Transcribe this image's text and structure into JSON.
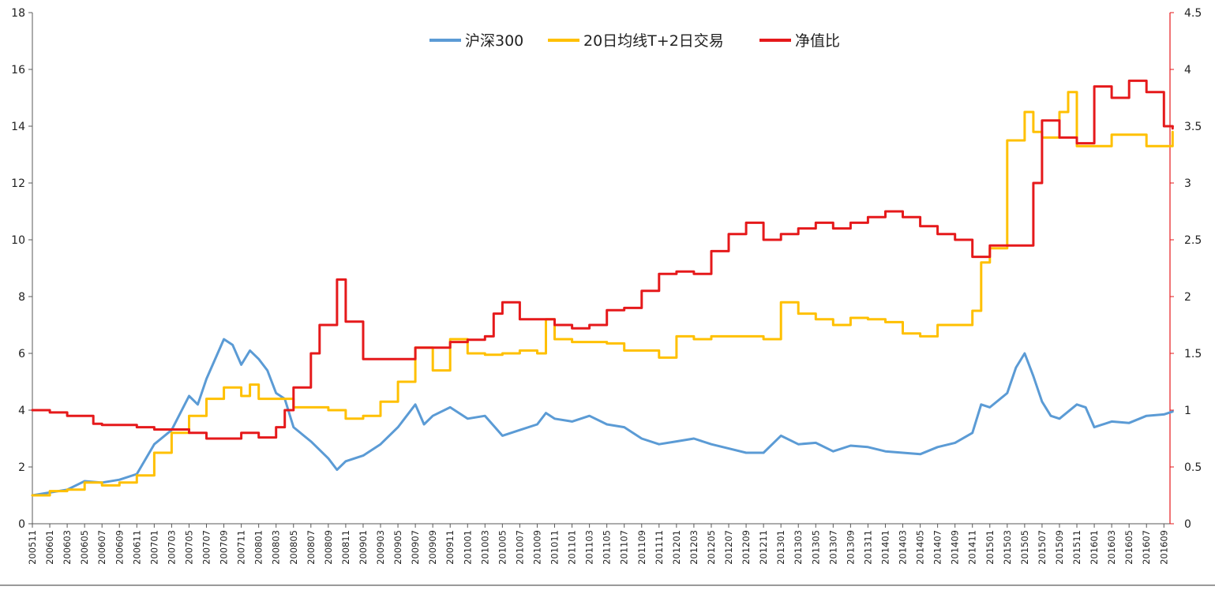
{
  "chart_data": {
    "type": "line",
    "legend_position": "top-center",
    "grid": false,
    "x_categories": [
      "200511",
      "200601",
      "200603",
      "200605",
      "200607",
      "200609",
      "200611",
      "200701",
      "200703",
      "200705",
      "200707",
      "200709",
      "200711",
      "200801",
      "200803",
      "200805",
      "200807",
      "200809",
      "200811",
      "200901",
      "200903",
      "200905",
      "200907",
      "200909",
      "200911",
      "201001",
      "201003",
      "201005",
      "201007",
      "201009",
      "201011",
      "201101",
      "201103",
      "201105",
      "201107",
      "201109",
      "201111",
      "201201",
      "201203",
      "201205",
      "201207",
      "201209",
      "201211",
      "201301",
      "201303",
      "201305",
      "201307",
      "201309",
      "201311",
      "201401",
      "201403",
      "201405",
      "201407",
      "201409",
      "201411",
      "201501",
      "201503",
      "201505",
      "201507",
      "201509",
      "201511",
      "201601",
      "201603",
      "201605",
      "201607",
      "201609"
    ],
    "left_axis": {
      "min": 0,
      "max": 18,
      "ticks": [
        "0",
        "2",
        "4",
        "6",
        "8",
        "10",
        "12",
        "14",
        "16",
        "18"
      ],
      "tick_values": [
        0,
        2,
        4,
        6,
        8,
        10,
        12,
        14,
        16,
        18
      ]
    },
    "right_axis": {
      "min": 0,
      "max": 4.5,
      "ticks": [
        "0",
        "0.5",
        "1",
        "1.5",
        "2",
        "2.5",
        "3",
        "3.5",
        "4",
        "4.5"
      ],
      "tick_values": [
        0,
        0.5,
        1,
        1.5,
        2,
        2.5,
        3,
        3.5,
        4,
        4.5
      ],
      "color": "#e5191b"
    },
    "series": [
      {
        "name": "沪深300",
        "color": "#5b9bd5",
        "axis": "left",
        "step": false,
        "points": [
          [
            "200511",
            1.0
          ],
          [
            "200601",
            1.1
          ],
          [
            "200603",
            1.2
          ],
          [
            "200605",
            1.5
          ],
          [
            "200607",
            1.45
          ],
          [
            "200609",
            1.55
          ],
          [
            "200611",
            1.75
          ],
          [
            "200701",
            2.8
          ],
          [
            "200703",
            3.3
          ],
          [
            "200705",
            4.5
          ],
          [
            "200706",
            4.2
          ],
          [
            "200707",
            5.1
          ],
          [
            "200709",
            6.5
          ],
          [
            "200710",
            6.3
          ],
          [
            "200711",
            5.6
          ],
          [
            "200712",
            6.1
          ],
          [
            "200801",
            5.8
          ],
          [
            "200802",
            5.4
          ],
          [
            "200803",
            4.6
          ],
          [
            "200804",
            4.4
          ],
          [
            "200805",
            3.4
          ],
          [
            "200807",
            2.9
          ],
          [
            "200809",
            2.3
          ],
          [
            "200810",
            1.9
          ],
          [
            "200811",
            2.2
          ],
          [
            "200901",
            2.4
          ],
          [
            "200903",
            2.8
          ],
          [
            "200905",
            3.4
          ],
          [
            "200907",
            4.2
          ],
          [
            "200908",
            3.5
          ],
          [
            "200909",
            3.8
          ],
          [
            "200911",
            4.1
          ],
          [
            "201001",
            3.7
          ],
          [
            "201003",
            3.8
          ],
          [
            "201005",
            3.1
          ],
          [
            "201007",
            3.3
          ],
          [
            "201009",
            3.5
          ],
          [
            "201010",
            3.9
          ],
          [
            "201011",
            3.7
          ],
          [
            "201101",
            3.6
          ],
          [
            "201103",
            3.8
          ],
          [
            "201105",
            3.5
          ],
          [
            "201107",
            3.4
          ],
          [
            "201109",
            3.0
          ],
          [
            "201111",
            2.8
          ],
          [
            "201201",
            2.9
          ],
          [
            "201203",
            3.0
          ],
          [
            "201205",
            2.8
          ],
          [
            "201207",
            2.65
          ],
          [
            "201209",
            2.5
          ],
          [
            "201211",
            2.5
          ],
          [
            "201301",
            3.1
          ],
          [
            "201303",
            2.8
          ],
          [
            "201305",
            2.85
          ],
          [
            "201307",
            2.55
          ],
          [
            "201309",
            2.75
          ],
          [
            "201311",
            2.7
          ],
          [
            "201401",
            2.55
          ],
          [
            "201403",
            2.5
          ],
          [
            "201405",
            2.45
          ],
          [
            "201407",
            2.7
          ],
          [
            "201409",
            2.85
          ],
          [
            "201411",
            3.2
          ],
          [
            "201412",
            4.2
          ],
          [
            "201501",
            4.1
          ],
          [
            "201503",
            4.6
          ],
          [
            "201504",
            5.5
          ],
          [
            "201505",
            6.0
          ],
          [
            "201506",
            5.2
          ],
          [
            "201507",
            4.3
          ],
          [
            "201508",
            3.8
          ],
          [
            "201509",
            3.7
          ],
          [
            "201511",
            4.2
          ],
          [
            "201512",
            4.1
          ],
          [
            "201601",
            3.4
          ],
          [
            "201603",
            3.6
          ],
          [
            "201605",
            3.55
          ],
          [
            "201607",
            3.8
          ],
          [
            "201609",
            3.85
          ],
          [
            "201610",
            3.95
          ]
        ]
      },
      {
        "name": "20日均线T+2日交易",
        "color": "#ffc000",
        "axis": "left",
        "step": true,
        "points": [
          [
            "200511",
            1.0
          ],
          [
            "200601",
            1.15
          ],
          [
            "200603",
            1.2
          ],
          [
            "200605",
            1.45
          ],
          [
            "200607",
            1.35
          ],
          [
            "200609",
            1.45
          ],
          [
            "200611",
            1.7
          ],
          [
            "200701",
            2.5
          ],
          [
            "200703",
            3.2
          ],
          [
            "200705",
            3.8
          ],
          [
            "200707",
            4.4
          ],
          [
            "200709",
            4.8
          ],
          [
            "200711",
            4.5
          ],
          [
            "200712",
            4.9
          ],
          [
            "200801",
            4.4
          ],
          [
            "200803",
            4.4
          ],
          [
            "200805",
            4.1
          ],
          [
            "200807",
            4.1
          ],
          [
            "200809",
            4.0
          ],
          [
            "200811",
            3.7
          ],
          [
            "200901",
            3.8
          ],
          [
            "200903",
            4.3
          ],
          [
            "200905",
            5.0
          ],
          [
            "200907",
            6.2
          ],
          [
            "200909",
            5.4
          ],
          [
            "200911",
            6.5
          ],
          [
            "201001",
            6.0
          ],
          [
            "201003",
            5.95
          ],
          [
            "201005",
            6.0
          ],
          [
            "201007",
            6.1
          ],
          [
            "201009",
            6.0
          ],
          [
            "201010",
            7.2
          ],
          [
            "201011",
            6.5
          ],
          [
            "201101",
            6.4
          ],
          [
            "201103",
            6.4
          ],
          [
            "201105",
            6.35
          ],
          [
            "201107",
            6.1
          ],
          [
            "201109",
            6.1
          ],
          [
            "201111",
            5.85
          ],
          [
            "201201",
            6.6
          ],
          [
            "201203",
            6.5
          ],
          [
            "201205",
            6.6
          ],
          [
            "201207",
            6.6
          ],
          [
            "201209",
            6.6
          ],
          [
            "201211",
            6.5
          ],
          [
            "201301",
            7.8
          ],
          [
            "201303",
            7.4
          ],
          [
            "201305",
            7.2
          ],
          [
            "201307",
            7.0
          ],
          [
            "201309",
            7.25
          ],
          [
            "201311",
            7.2
          ],
          [
            "201401",
            7.1
          ],
          [
            "201403",
            6.7
          ],
          [
            "201405",
            6.6
          ],
          [
            "201407",
            7.0
          ],
          [
            "201409",
            7.0
          ],
          [
            "201411",
            7.5
          ],
          [
            "201412",
            9.2
          ],
          [
            "201501",
            9.7
          ],
          [
            "201503",
            13.5
          ],
          [
            "201505",
            14.5
          ],
          [
            "201506",
            13.8
          ],
          [
            "201507",
            13.6
          ],
          [
            "201509",
            14.5
          ],
          [
            "201510",
            15.2
          ],
          [
            "201511",
            13.3
          ],
          [
            "201601",
            13.3
          ],
          [
            "201603",
            13.7
          ],
          [
            "201605",
            13.7
          ],
          [
            "201607",
            13.3
          ],
          [
            "201609",
            13.3
          ],
          [
            "201610",
            13.8
          ]
        ]
      },
      {
        "name": "净值比",
        "color": "#e5191b",
        "axis": "right",
        "step": true,
        "points": [
          [
            "200511",
            1.0
          ],
          [
            "200601",
            0.98
          ],
          [
            "200603",
            0.95
          ],
          [
            "200605",
            0.95
          ],
          [
            "200606",
            0.88
          ],
          [
            "200607",
            0.87
          ],
          [
            "200609",
            0.87
          ],
          [
            "200611",
            0.85
          ],
          [
            "200701",
            0.83
          ],
          [
            "200703",
            0.83
          ],
          [
            "200705",
            0.8
          ],
          [
            "200707",
            0.75
          ],
          [
            "200709",
            0.75
          ],
          [
            "200711",
            0.8
          ],
          [
            "200801",
            0.76
          ],
          [
            "200803",
            0.85
          ],
          [
            "200804",
            1.0
          ],
          [
            "200805",
            1.2
          ],
          [
            "200807",
            1.5
          ],
          [
            "200808",
            1.75
          ],
          [
            "200810",
            2.15
          ],
          [
            "200811",
            1.78
          ],
          [
            "200901",
            1.45
          ],
          [
            "200903",
            1.45
          ],
          [
            "200905",
            1.45
          ],
          [
            "200907",
            1.55
          ],
          [
            "200909",
            1.55
          ],
          [
            "200911",
            1.6
          ],
          [
            "201001",
            1.62
          ],
          [
            "201003",
            1.65
          ],
          [
            "201004",
            1.85
          ],
          [
            "201005",
            1.95
          ],
          [
            "201007",
            1.8
          ],
          [
            "201009",
            1.8
          ],
          [
            "201011",
            1.75
          ],
          [
            "201101",
            1.72
          ],
          [
            "201103",
            1.75
          ],
          [
            "201105",
            1.88
          ],
          [
            "201107",
            1.9
          ],
          [
            "201109",
            2.05
          ],
          [
            "201111",
            2.2
          ],
          [
            "201201",
            2.22
          ],
          [
            "201203",
            2.2
          ],
          [
            "201205",
            2.4
          ],
          [
            "201207",
            2.55
          ],
          [
            "201209",
            2.65
          ],
          [
            "201211",
            2.5
          ],
          [
            "201301",
            2.55
          ],
          [
            "201303",
            2.6
          ],
          [
            "201305",
            2.65
          ],
          [
            "201307",
            2.6
          ],
          [
            "201309",
            2.65
          ],
          [
            "201311",
            2.7
          ],
          [
            "201401",
            2.75
          ],
          [
            "201403",
            2.7
          ],
          [
            "201405",
            2.62
          ],
          [
            "201407",
            2.55
          ],
          [
            "201409",
            2.5
          ],
          [
            "201411",
            2.35
          ],
          [
            "201501",
            2.45
          ],
          [
            "201503",
            2.45
          ],
          [
            "201505",
            2.45
          ],
          [
            "201506",
            3.0
          ],
          [
            "201507",
            3.55
          ],
          [
            "201509",
            3.4
          ],
          [
            "201510",
            3.4
          ],
          [
            "201511",
            3.35
          ],
          [
            "201601",
            3.85
          ],
          [
            "201603",
            3.75
          ],
          [
            "201605",
            3.9
          ],
          [
            "201607",
            3.8
          ],
          [
            "201609",
            3.5
          ],
          [
            "201610",
            3.48
          ]
        ]
      }
    ]
  }
}
